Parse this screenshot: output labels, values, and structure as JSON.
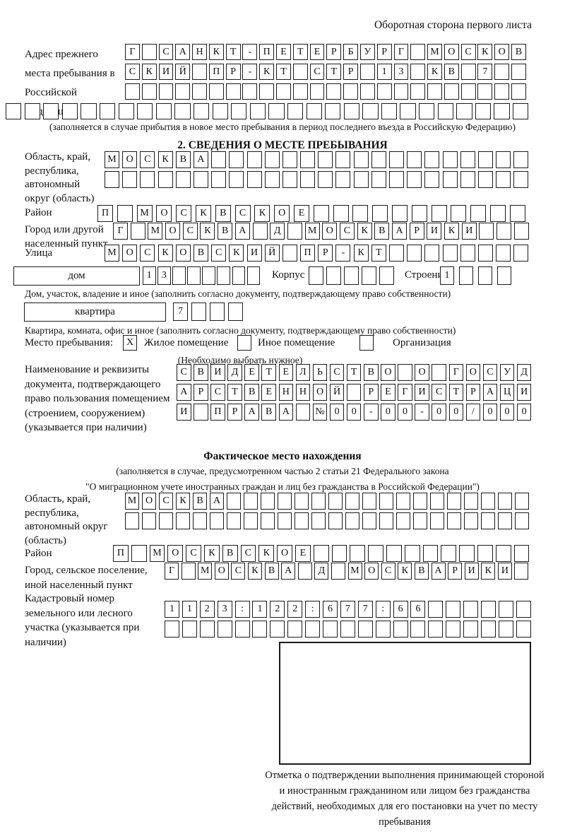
{
  "page": {
    "header": "Оборотная сторона первого листа"
  },
  "prev_address": {
    "label": "Адрес прежнего места пребывания в Российской Федерации",
    "r1": "Г САНКТ-ПЕТЕРБУРГ МОСКОВ",
    "r2": "СКИЙ ПР-КТ СТР 13 КВ 7",
    "r3": "",
    "r4": "",
    "note": "(заполняется в случае прибытия в новое место пребывания в период последнего въезда в Российскую Федерацию)"
  },
  "section2": {
    "title": "2. СВЕДЕНИЯ О МЕСТЕ ПРЕБЫВАНИЯ",
    "region": {
      "label": "Область, край, республика, автономный округ (область)",
      "r1": "МОСКВА",
      "r2": ""
    },
    "district": {
      "label": "Район",
      "value": "П МОСКВСКОЕ"
    },
    "city": {
      "label": "Город или другой населенный пункт",
      "value": "Г МОСКВА Д МОСКВАРИКИ"
    },
    "street": {
      "label": "Улица",
      "value": "МОСКОВСКИЙ ПР-КТ"
    },
    "house": {
      "label": "дом",
      "value": "13",
      "korpus_label": "Корпус",
      "korpus_value": "",
      "stroenie_label": "Строение",
      "stroenie_value": "1",
      "note": "Дом, участок, владение и иное (заполнить согласно документу, подтверждающему право собственности)"
    },
    "apartment": {
      "label": "квартира",
      "value": "7",
      "note": "Квартира, комната, офис и иное (заполнить согласно документу, подтверждающему право собственности)"
    },
    "stay_type": {
      "label": "Место пребывания:",
      "note": "(Необходимо выбрать нужное)",
      "options": [
        {
          "label": "Жилое помещение",
          "mark": "X"
        },
        {
          "label": "Иное помещение",
          "mark": ""
        },
        {
          "label": "Организация",
          "mark": ""
        }
      ]
    },
    "doc": {
      "label": "Наименование и реквизиты документа, подтверждающего право пользования помещением (строением, сооружением) (указывается при наличии)",
      "r1": "СВИДЕТЕЛЬСТВО О ГОСУД",
      "r2": "АРСТВЕННОЙ РЕГИСТРАЦИ",
      "r3": "И ПРАВА №00-00-00/000"
    }
  },
  "fact": {
    "title": "Фактическое место нахождения",
    "note_line1": "(заполняется в случае, предусмотренном частью 2 статьи 21 Федерального закона",
    "note_line2": "\"О миграционном учете иностранных граждан и лиц без гражданства в Российской Федерации\")",
    "region": {
      "label": "Область, край, республика, автономный округ (область)",
      "r1": "МОСКВА",
      "r2": ""
    },
    "district": {
      "label": "Район",
      "value": "П МОСКВСКОЕ"
    },
    "city": {
      "label": "Город, сельское поселение, иной населенный пункт",
      "value": "Г МОСКВА Д МОСКВАРИКИ"
    },
    "cadastral": {
      "label": "Кадастровый номер земельного или лесного участка (указывается при наличии)",
      "r1": "1123:122:677:66",
      "r2": ""
    },
    "stamp_caption": "Отметка о подтверждении выполнения принимающей стороной и иностранным гражданином или лицом без гражданства действий, необходимых для его постановки на учет по месту пребывания"
  }
}
